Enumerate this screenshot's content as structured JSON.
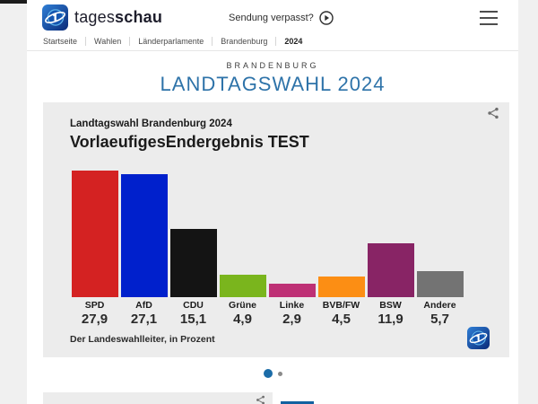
{
  "header": {
    "brand_prefix": "tages",
    "brand_suffix": "schau",
    "broadcast_label": "Sendung verpasst?"
  },
  "breadcrumb": {
    "items": [
      "Startseite",
      "Wahlen",
      "Länderparlamente",
      "Brandenburg"
    ],
    "current": "2024"
  },
  "hero": {
    "kicker": "BRANDENBURG",
    "title": "LANDTAGSWAHL 2024",
    "title_color": "#2e73a9"
  },
  "chart_data": {
    "type": "bar",
    "title": "Landtagswahl Brandenburg 2024",
    "subtitle": "VorlaeufigesEndergebnis TEST",
    "categories": [
      "SPD",
      "AfD",
      "CDU",
      "Grüne",
      "Linke",
      "BVB/FW",
      "BSW",
      "Andere"
    ],
    "values": [
      27.9,
      27.1,
      15.1,
      4.9,
      2.9,
      4.5,
      11.9,
      5.7
    ],
    "value_labels": [
      "27,9",
      "27,1",
      "15,1",
      "4,9",
      "2,9",
      "4,5",
      "11,9",
      "5,7"
    ],
    "colors": [
      "#d42222",
      "#0020cc",
      "#141414",
      "#7ab51d",
      "#be3075",
      "#fc8e14",
      "#882465",
      "#737373"
    ],
    "source": "Der Landeswahlleiter, in Prozent",
    "unit": "Prozent",
    "ylim": [
      0,
      30
    ],
    "grid": false,
    "legend": false
  },
  "carousel": {
    "dots": [
      {
        "active": true
      },
      {
        "active": false
      }
    ],
    "active_color": "#1b6ca8"
  }
}
